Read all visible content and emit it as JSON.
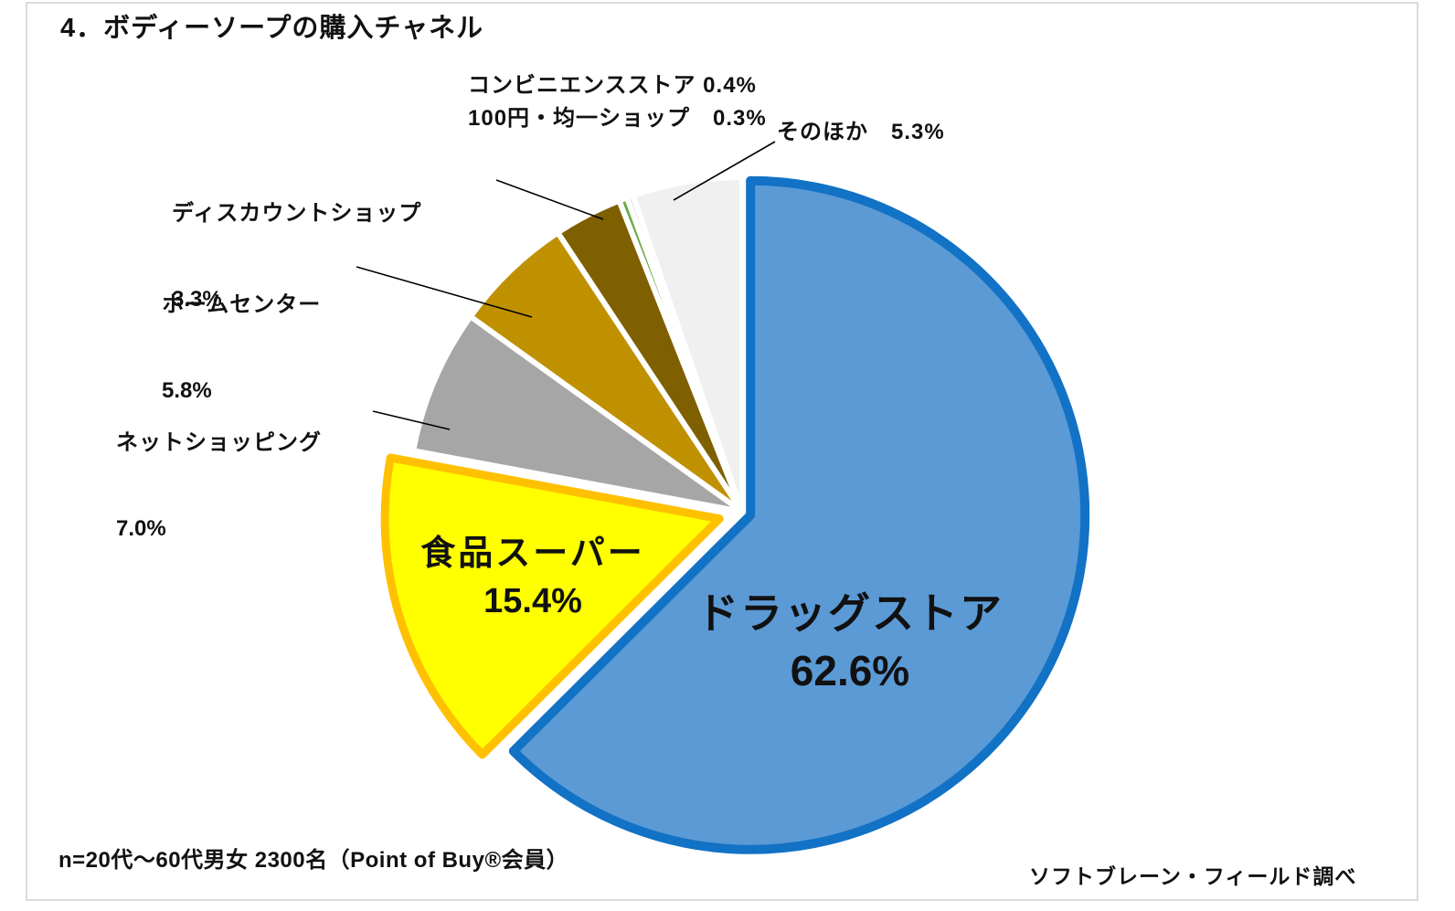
{
  "page": {
    "title": "4．ボディーソープの購入チャネル"
  },
  "chart_data": {
    "type": "pie",
    "title": "4．ボディーソープの購入チャネル",
    "unit": "percent",
    "direction": "clockwise",
    "start_angle_deg": 0,
    "legend_position": "none",
    "labels_on_chart": true,
    "slices": [
      {
        "label": "ドラッグストア",
        "value": 62.6,
        "color": "#5B9AD5",
        "border_color": "#1272C5"
      },
      {
        "label": "食品スーパー",
        "value": 15.4,
        "color": "#FFFF00",
        "border_color": "#FFC000"
      },
      {
        "label": "ネットショッピング",
        "value": 7.0,
        "color": "#A6A6A6"
      },
      {
        "label": "ホームセンター",
        "value": 5.8,
        "color": "#BF9000"
      },
      {
        "label": "ディスカウントショップ",
        "value": 3.3,
        "color": "#7F6000"
      },
      {
        "label": "コンビニエンスストア",
        "value": 0.4,
        "color": "#6AAB46"
      },
      {
        "label": "100円・均一ショップ",
        "value": 0.3,
        "color": "#BDD7EE"
      },
      {
        "label": "そのほか",
        "value": 5.3,
        "color": "#F0F0F0"
      }
    ]
  },
  "callouts": {
    "convenience": {
      "text": "コンビニエンスストア 0.4%"
    },
    "hundred_yen": {
      "text": "100円・均一ショップ　0.3%"
    },
    "other": {
      "text": "そのほか　5.3%"
    },
    "discount": {
      "line1": "ディスカウントショップ",
      "line2": "3.3%"
    },
    "home_center": {
      "line1": "ホームセンター",
      "line2": "5.8%"
    },
    "net_shopping": {
      "line1": "ネットショッピング",
      "line2": "7.0%"
    },
    "food_super": {
      "line1": "食品スーパー",
      "line2": "15.4%"
    },
    "drug_store": {
      "line1": "ドラッグストア",
      "line2": "62.6%"
    }
  },
  "footnote": "n=20代〜60代男女 2300名（Point of Buy®会員）",
  "source": "ソフトブレーン・フィールド調べ"
}
